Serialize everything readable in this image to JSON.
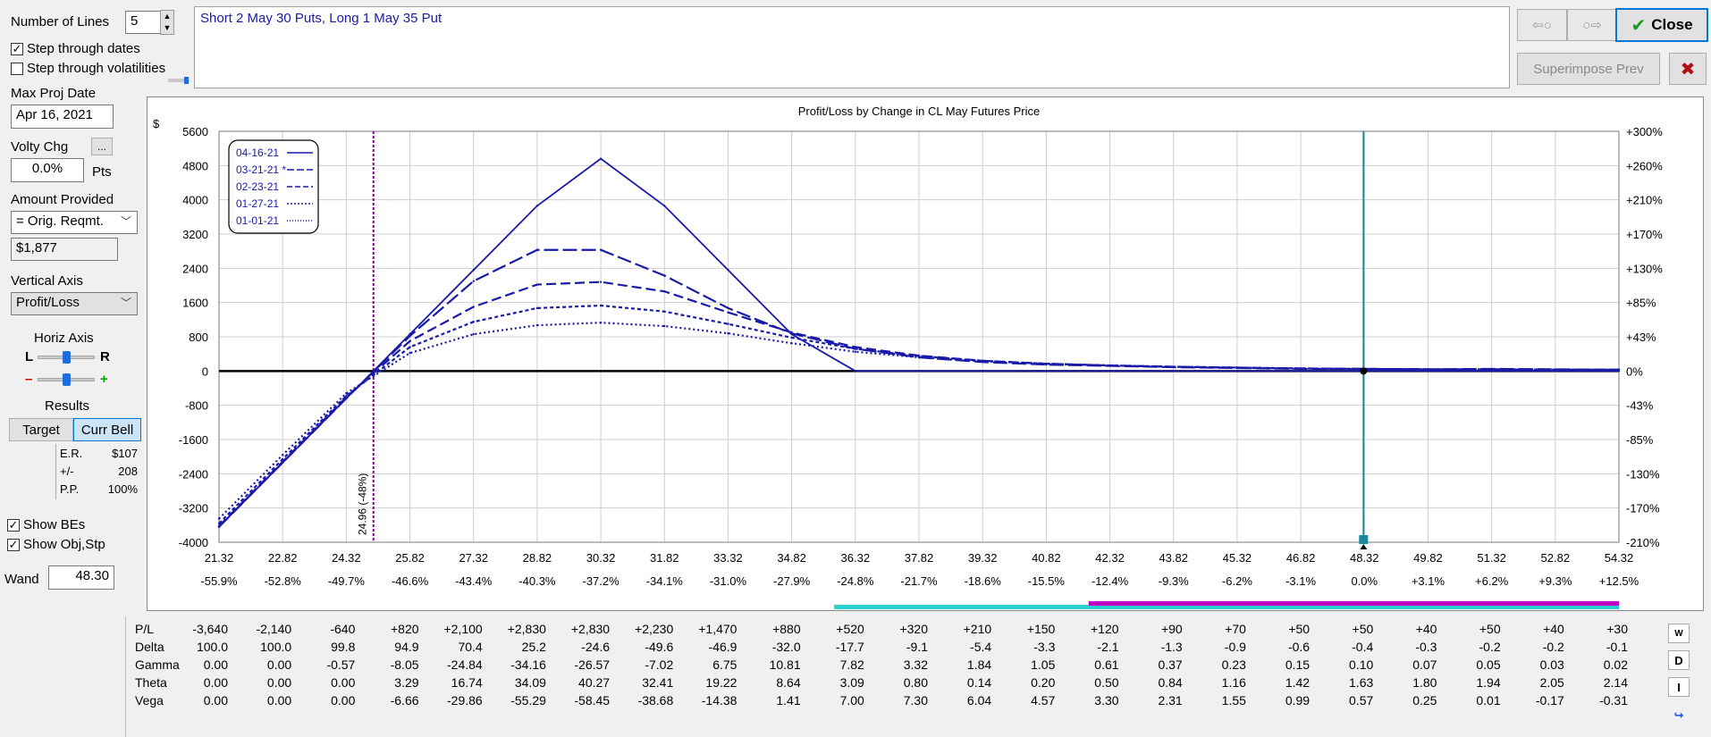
{
  "controls": {
    "number_of_lines_label": "Number of Lines",
    "number_of_lines_value": "5",
    "step_dates_label": "Step through dates",
    "step_vols_label": "Step through volatilities",
    "max_proj_date_label": "Max Proj Date",
    "max_proj_date_value": "Apr 16, 2021",
    "volty_chg_label": "Volty Chg",
    "volty_chg_value": "0.0%",
    "volty_units": "Pts",
    "more_button": "...",
    "amount_provided_label": "Amount Provided",
    "amount_provided_value": "= Orig. Reqmt.",
    "amount_value": "$1,877",
    "vertical_axis_label": "Vertical Axis",
    "vertical_axis_value": "Profit/Loss",
    "horiz_axis_label": "Horiz Axis",
    "slider_left": "L",
    "slider_right": "R",
    "slider_minus": "–",
    "slider_plus": "+",
    "results_label": "Results",
    "target_button": "Target",
    "curr_bell_button": "Curr Bell",
    "er_label": "E.R.",
    "er_value": "$107",
    "pm_label": "+/-",
    "pm_value": "208",
    "pp_label": "P.P.",
    "pp_value": "100%",
    "show_bes_label": "Show BEs",
    "show_objstp_label": "Show Obj,Stp",
    "wand_label": "Wand",
    "wand_value": "48.30"
  },
  "position_text": "Short 2 May 30 Puts, Long 1 May 35 Put",
  "buttons": {
    "close": "Close",
    "superimpose": "Superimpose Prev",
    "back_icon": "⇦○",
    "fwd_icon": "○⇨",
    "close_x": "✖"
  },
  "side_icons": [
    "W",
    "D",
    "I",
    "↪"
  ],
  "colors": {
    "series": "#1a1aa8",
    "wand": "#1a8a9a",
    "be_line": "#8a008a",
    "cyan_bar": "#2ad0d0",
    "magenta_bar": "#c000c0"
  },
  "chart_data": {
    "type": "line",
    "title": "Profit/Loss by Change in CL May Futures Price",
    "ylabel": "$",
    "ylim": [
      -4000,
      5600
    ],
    "yticks": [
      5600,
      4800,
      4000,
      3200,
      2400,
      1600,
      800,
      0,
      -800,
      -1600,
      -2400,
      -3200,
      -4000
    ],
    "right_ticks": [
      "+300%",
      "+260%",
      "+210%",
      "+170%",
      "+130%",
      "+85%",
      "+43%",
      "0%",
      "-43%",
      "-85%",
      "-130%",
      "-170%",
      "-210%"
    ],
    "x": [
      21.32,
      22.82,
      24.32,
      25.82,
      27.32,
      28.82,
      30.32,
      31.82,
      33.32,
      34.82,
      36.32,
      37.82,
      39.32,
      40.82,
      42.32,
      43.82,
      45.32,
      46.82,
      48.32,
      49.82,
      51.32,
      52.82,
      54.32
    ],
    "xticks": [
      "21.32",
      "22.82",
      "24.32",
      "25.82",
      "27.32",
      "28.82",
      "30.32",
      "31.82",
      "33.32",
      "34.82",
      "36.32",
      "37.82",
      "39.32",
      "40.82",
      "42.32",
      "43.82",
      "45.32",
      "46.82",
      "48.32",
      "49.82",
      "51.32",
      "52.82",
      "54.32"
    ],
    "xpct": [
      "-55.9%",
      "-52.8%",
      "-49.7%",
      "-46.6%",
      "-43.4%",
      "-40.3%",
      "-37.2%",
      "-34.1%",
      "-31.0%",
      "-27.9%",
      "-24.8%",
      "-21.7%",
      "-18.6%",
      "-15.5%",
      "-12.4%",
      "-9.3%",
      "-6.2%",
      "-3.1%",
      "0.0%",
      "+3.1%",
      "+6.2%",
      "+9.3%",
      "+12.5%"
    ],
    "xlim": [
      21.32,
      54.32
    ],
    "series": [
      {
        "name": "04-16-21",
        "dash": "",
        "legend_mark": "———",
        "values": [
          -3640,
          -2140,
          -640,
          860,
          2360,
          3860,
          4960,
          3860,
          2360,
          860,
          0,
          0,
          0,
          0,
          0,
          0,
          0,
          0,
          0,
          0,
          0,
          0,
          0
        ]
      },
      {
        "name": "03-21-21 *",
        "dash": "16 5",
        "legend_mark": "—•—",
        "values": [
          -3640,
          -2140,
          -640,
          820,
          2100,
          2830,
          2830,
          2230,
          1470,
          880,
          520,
          320,
          210,
          150,
          120,
          90,
          70,
          50,
          50,
          40,
          50,
          40,
          30
        ]
      },
      {
        "name": "02-23-21",
        "dash": "11 5",
        "legend_mark": "— —",
        "values": [
          -3620,
          -2120,
          -610,
          700,
          1500,
          2020,
          2080,
          1860,
          1370,
          900,
          560,
          360,
          240,
          170,
          130,
          100,
          80,
          60,
          50,
          40,
          40,
          30,
          30
        ]
      },
      {
        "name": "01-27-21",
        "dash": "4 3",
        "legend_mark": "- - - -",
        "values": [
          -3560,
          -2060,
          -580,
          560,
          1150,
          1470,
          1530,
          1390,
          1100,
          780,
          520,
          350,
          240,
          170,
          130,
          100,
          80,
          60,
          50,
          40,
          40,
          30,
          30
        ]
      },
      {
        "name": "01-01-21",
        "dash": "2 3",
        "legend_mark": "· · · ·",
        "values": [
          -3450,
          -1960,
          -520,
          420,
          860,
          1070,
          1130,
          1050,
          880,
          650,
          450,
          320,
          230,
          170,
          130,
          100,
          80,
          60,
          50,
          40,
          40,
          30,
          30
        ]
      }
    ],
    "be_value": 24.96,
    "be_label": "24.96 (-48%)",
    "wand_value": 48.3
  },
  "table": {
    "rows": [
      {
        "name": "P/L",
        "values": [
          "-3,640",
          "-2,140",
          "-640",
          "+820",
          "+2,100",
          "+2,830",
          "+2,830",
          "+2,230",
          "+1,470",
          "+880",
          "+520",
          "+320",
          "+210",
          "+150",
          "+120",
          "+90",
          "+70",
          "+50",
          "+50",
          "+40",
          "+50",
          "+40",
          "+30"
        ]
      },
      {
        "name": "Delta",
        "values": [
          "100.0",
          "100.0",
          "99.8",
          "94.9",
          "70.4",
          "25.2",
          "-24.6",
          "-49.6",
          "-46.9",
          "-32.0",
          "-17.7",
          "-9.1",
          "-5.4",
          "-3.3",
          "-2.1",
          "-1.3",
          "-0.9",
          "-0.6",
          "-0.4",
          "-0.3",
          "-0.2",
          "-0.2",
          "-0.1"
        ]
      },
      {
        "name": "Gamma",
        "values": [
          "0.00",
          "0.00",
          "-0.57",
          "-8.05",
          "-24.84",
          "-34.16",
          "-26.57",
          "-7.02",
          "6.75",
          "10.81",
          "7.82",
          "3.32",
          "1.84",
          "1.05",
          "0.61",
          "0.37",
          "0.23",
          "0.15",
          "0.10",
          "0.07",
          "0.05",
          "0.03",
          "0.02"
        ]
      },
      {
        "name": "Theta",
        "values": [
          "0.00",
          "0.00",
          "0.00",
          "3.29",
          "16.74",
          "34.09",
          "40.27",
          "32.41",
          "19.22",
          "8.64",
          "3.09",
          "0.80",
          "0.14",
          "0.20",
          "0.50",
          "0.84",
          "1.16",
          "1.42",
          "1.63",
          "1.80",
          "1.94",
          "2.05",
          "2.14"
        ]
      },
      {
        "name": "Vega",
        "values": [
          "0.00",
          "0.00",
          "0.00",
          "-6.66",
          "-29.86",
          "-55.29",
          "-58.45",
          "-38.68",
          "-14.38",
          "1.41",
          "7.00",
          "7.30",
          "6.04",
          "4.57",
          "3.30",
          "2.31",
          "1.55",
          "0.99",
          "0.57",
          "0.25",
          "0.01",
          "-0.17",
          "-0.31"
        ]
      }
    ]
  }
}
